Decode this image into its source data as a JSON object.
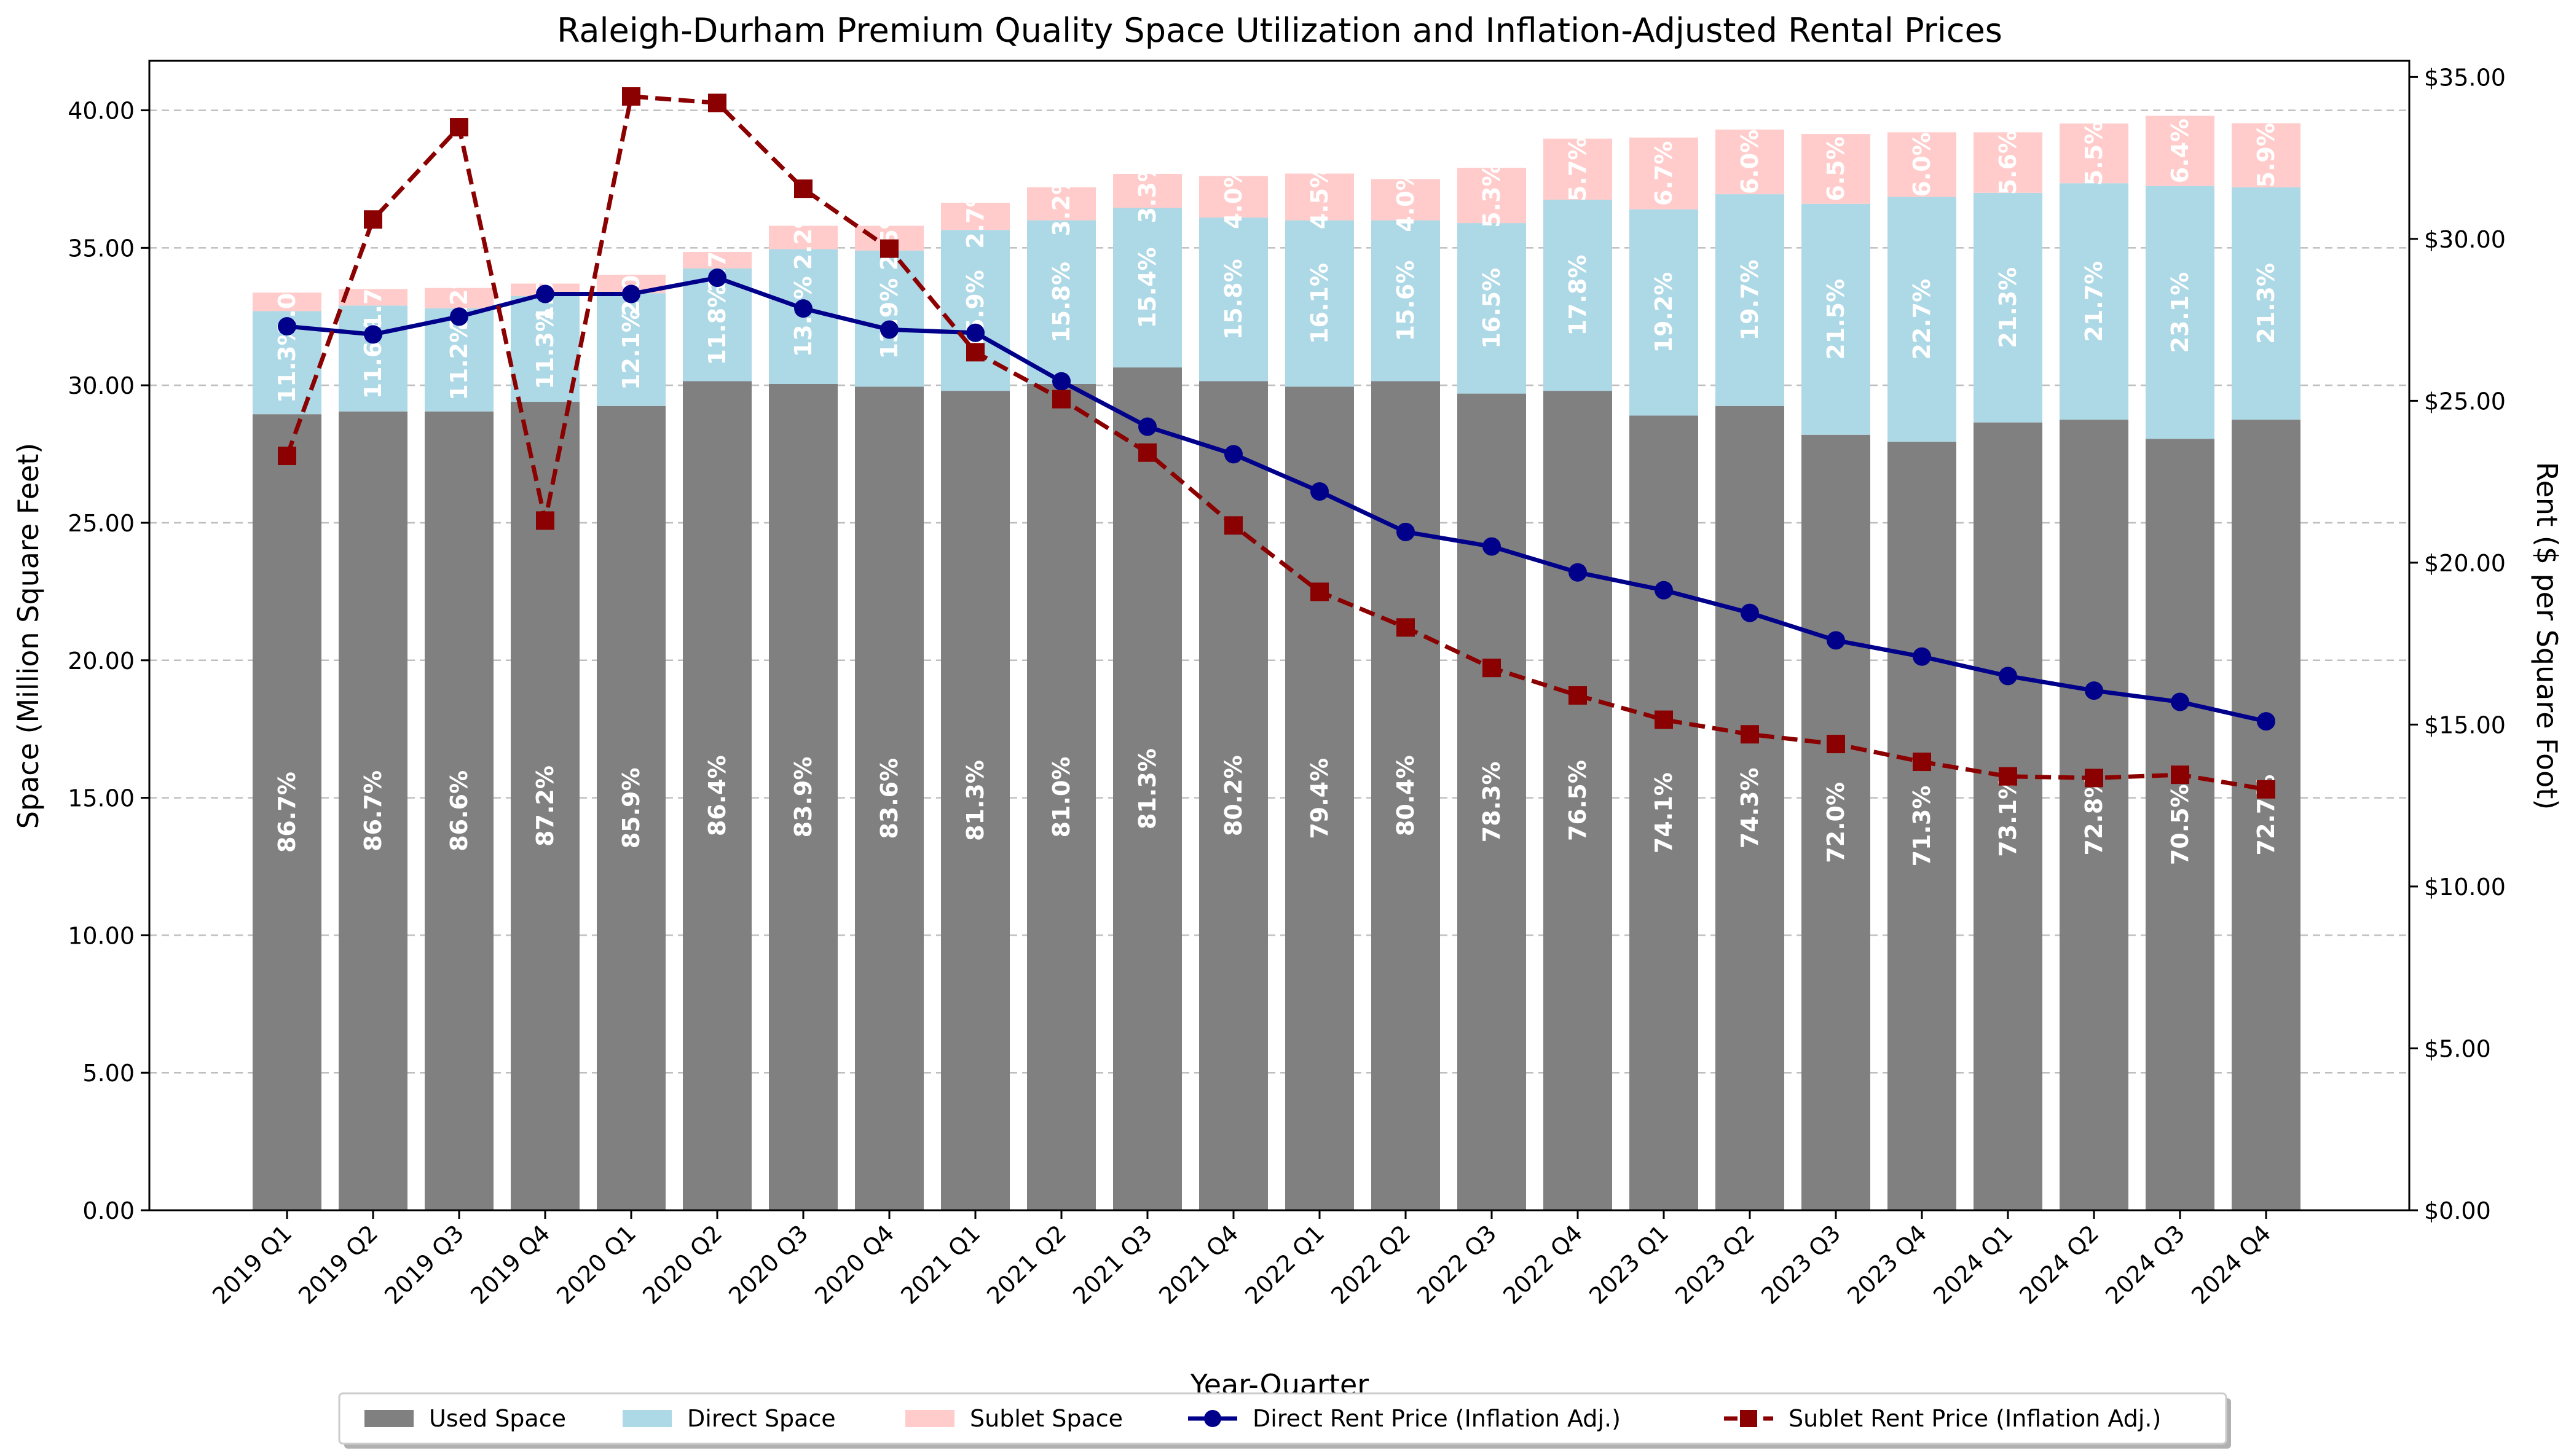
{
  "chart_data": {
    "type": "bar",
    "title": "Raleigh-Durham Premium Quality Space Utilization and Inflation-Adjusted Rental Prices",
    "xlabel": "Year-Quarter",
    "ylabel": "Space (Million Square Feet)",
    "y2label": "Rent ($ per Square Foot)",
    "ylim": [
      0,
      41.8
    ],
    "y2lim": [
      0,
      35.5
    ],
    "yticks": [
      "0.00",
      "5.00",
      "10.00",
      "15.00",
      "20.00",
      "25.00",
      "30.00",
      "35.00",
      "40.00"
    ],
    "y2ticks": [
      "$0.00",
      "$5.00",
      "$10.00",
      "$15.00",
      "$20.00",
      "$25.00",
      "$30.00",
      "$35.00"
    ],
    "grid": true,
    "legend_position": "bottom-center",
    "categories": [
      "2019 Q1",
      "2019 Q2",
      "2019 Q3",
      "2019 Q4",
      "2020 Q1",
      "2020 Q2",
      "2020 Q3",
      "2020 Q4",
      "2021 Q1",
      "2021 Q2",
      "2021 Q3",
      "2021 Q4",
      "2022 Q1",
      "2022 Q2",
      "2022 Q3",
      "2022 Q4",
      "2023 Q1",
      "2023 Q2",
      "2023 Q3",
      "2023 Q4",
      "2024 Q1",
      "2024 Q2",
      "2024 Q3",
      "2024 Q4"
    ],
    "series": [
      {
        "name": "Used Space",
        "kind": "bar",
        "axis": "left",
        "color": "#808080",
        "values": [
          28.95,
          29.05,
          29.05,
          29.4,
          29.25,
          30.15,
          30.05,
          29.95,
          29.8,
          30.05,
          30.65,
          30.15,
          29.95,
          30.15,
          29.7,
          29.8,
          28.9,
          29.25,
          28.2,
          27.95,
          28.65,
          28.75,
          28.05,
          28.75
        ],
        "labels": [
          "86.7%",
          "86.7%",
          "86.6%",
          "87.2%",
          "85.9%",
          "86.4%",
          "83.9%",
          "83.6%",
          "81.3%",
          "81.0%",
          "81.3%",
          "80.2%",
          "79.4%",
          "80.4%",
          "78.3%",
          "76.5%",
          "74.1%",
          "74.3%",
          "72.0%",
          "71.3%",
          "73.1%",
          "72.8%",
          "70.5%",
          "72.7%"
        ]
      },
      {
        "name": "Direct Space",
        "kind": "bar",
        "axis": "left",
        "color": "#add8e6",
        "values": [
          3.75,
          3.85,
          3.75,
          3.85,
          4.1,
          4.1,
          4.9,
          4.95,
          5.85,
          5.95,
          5.8,
          5.95,
          6.05,
          5.85,
          6.2,
          6.95,
          7.5,
          7.7,
          8.4,
          8.9,
          8.35,
          8.6,
          9.2,
          8.45
        ],
        "labels": [
          "11.3%",
          "11.6%",
          "11.2%",
          "11.3%",
          "12.1%",
          "11.8%",
          "13.9%",
          "13.9%",
          "15.9%",
          "15.8%",
          "15.4%",
          "15.8%",
          "16.1%",
          "15.6%",
          "16.5%",
          "17.8%",
          "19.2%",
          "19.7%",
          "21.5%",
          "22.7%",
          "21.3%",
          "21.7%",
          "23.1%",
          "21.3%"
        ]
      },
      {
        "name": "Sublet Space",
        "kind": "bar",
        "axis": "left",
        "color": "#ffcccb",
        "values": [
          0.67,
          0.6,
          0.74,
          0.45,
          0.67,
          0.6,
          0.85,
          0.9,
          0.99,
          1.2,
          1.24,
          1.51,
          1.7,
          1.5,
          2.01,
          2.22,
          2.61,
          2.35,
          2.54,
          2.35,
          2.2,
          2.17,
          2.55,
          2.33
        ],
        "labels": [
          "2.0%",
          "1.7%",
          "2.2%",
          "1.5%",
          "2.0%",
          "1.7%",
          "2.2%",
          "2.5%",
          "2.7%",
          "3.2%",
          "3.3%",
          "4.0%",
          "4.5%",
          "4.0%",
          "5.3%",
          "5.7%",
          "6.7%",
          "6.0%",
          "6.5%",
          "6.0%",
          "5.6%",
          "5.5%",
          "6.4%",
          "5.9%"
        ]
      },
      {
        "name": "Direct Rent Price (Inflation Adj.)",
        "kind": "line",
        "axis": "right",
        "color": "#00008b",
        "marker": "circle",
        "dash": "solid",
        "values": [
          27.3,
          27.05,
          27.6,
          28.3,
          28.3,
          28.8,
          27.85,
          27.2,
          27.1,
          25.6,
          24.2,
          23.35,
          22.2,
          20.95,
          20.5,
          19.7,
          19.15,
          18.45,
          17.6,
          17.1,
          16.5,
          16.05,
          15.7,
          15.1
        ]
      },
      {
        "name": "Sublet Rent Price (Inflation Adj.)",
        "kind": "line",
        "axis": "right",
        "color": "#8b0000",
        "marker": "square",
        "dash": "dashed",
        "values": [
          23.3,
          30.6,
          33.45,
          21.3,
          34.4,
          34.2,
          31.55,
          29.7,
          26.5,
          25.05,
          23.4,
          21.15,
          19.1,
          18.0,
          16.75,
          15.9,
          15.15,
          14.7,
          14.4,
          13.85,
          13.4,
          13.35,
          13.45,
          13.0
        ]
      }
    ]
  }
}
